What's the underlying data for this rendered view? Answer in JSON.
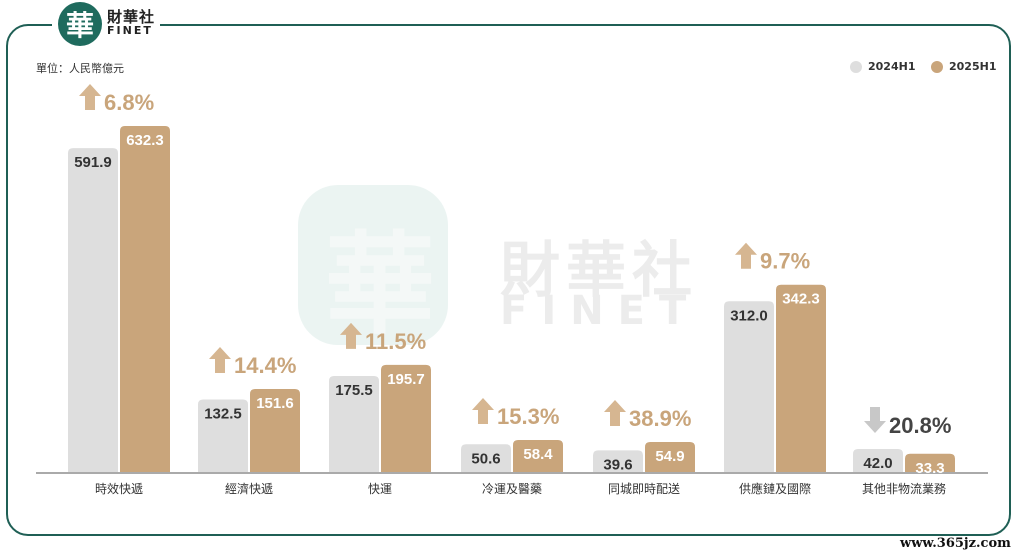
{
  "brand": {
    "logo_char": "華",
    "name_cn": "財華社",
    "name_en": "FINET",
    "watermark_url": "www.365jz.com"
  },
  "unit_label": "單位：人民幣億元",
  "colors": {
    "series_2024": "#dedede",
    "series_2025": "#c9a57b",
    "up_arrow": "#d6b691",
    "down_arrow": "#c8c8c8",
    "pct_text": "#c9a57b",
    "down_text": "#444444",
    "frame": "#1f5f55"
  },
  "chart_data": {
    "type": "bar",
    "categories": [
      "時效快遞",
      "經濟快遞",
      "快運",
      "冷運及醫藥",
      "同城即時配送",
      "供應鏈及國際",
      "其他非物流業務"
    ],
    "series": [
      {
        "name": "2024H1",
        "values": [
          591.9,
          132.5,
          175.5,
          50.6,
          39.6,
          312.0,
          42.0
        ]
      },
      {
        "name": "2025H1",
        "values": [
          632.3,
          151.6,
          195.7,
          58.4,
          54.9,
          342.3,
          33.3
        ]
      }
    ],
    "value_labels_2024": [
      "591.9",
      "132.5",
      "175.5",
      "50.6",
      "39.6",
      "312.0",
      "42.0"
    ],
    "value_labels_2025": [
      "632.3",
      "151.6",
      "195.7",
      "58.4",
      "54.9",
      "342.3",
      "33.3"
    ],
    "changes": [
      "6.8%",
      "14.4%",
      "11.5%",
      "15.3%",
      "38.9%",
      "9.7%",
      "20.8%"
    ],
    "directions": [
      "up",
      "up",
      "up",
      "up",
      "up",
      "up",
      "down"
    ],
    "ylim": [
      0,
      632.3
    ],
    "legend_position": "top-right",
    "grid": false
  }
}
